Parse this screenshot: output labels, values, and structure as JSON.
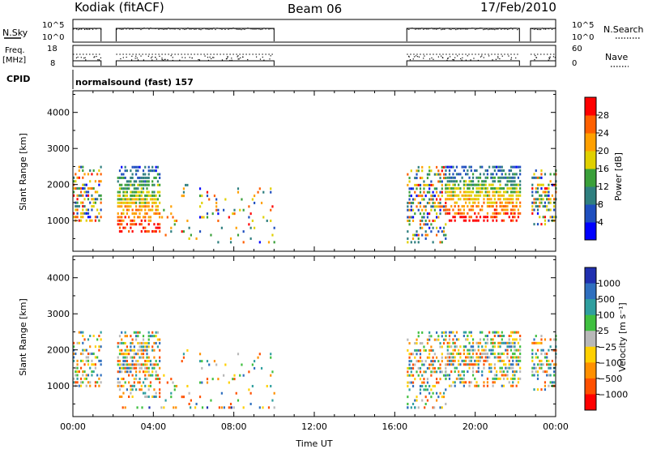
{
  "header": {
    "station": "Kodiak (fitACF)",
    "beam": "Beam 06",
    "date": "17/Feb/2010"
  },
  "strip_panels": {
    "nsky": {
      "label": "N.Sky",
      "ticks": [
        "10^5",
        "10^0"
      ]
    },
    "nsearch": {
      "label": "N.Search",
      "ticks": [
        "10^5",
        "10^0"
      ]
    },
    "freq": {
      "label_line1": "Freq.",
      "label_line2": "[MHz]",
      "ticks": [
        "18",
        "8"
      ]
    },
    "nave": {
      "label": "Nave",
      "ticks": [
        "60",
        "0"
      ]
    },
    "cpid": {
      "label": "CPID",
      "value": "normalsound (fast) 157"
    }
  },
  "chart_data": [
    {
      "type": "heatmap",
      "name": "power",
      "ylabel": "Slant Range [km]",
      "xlabel": "",
      "xlim": [
        0,
        24
      ],
      "ylim": [
        150,
        4600
      ],
      "yticks": [
        1000,
        2000,
        3000,
        4000
      ],
      "colorbar": {
        "label": "Power [dB]",
        "ticks": [
          "4",
          "8",
          "12",
          "16",
          "20",
          "24",
          "28"
        ],
        "range": [
          0,
          32
        ]
      },
      "data_intervals_ut": [
        [
          0.0,
          1.4
        ],
        [
          2.15,
          10.0
        ],
        [
          16.6,
          22.2
        ],
        [
          22.75,
          24.0
        ]
      ],
      "echo_bands": [
        {
          "x": [
            0.0,
            1.4
          ],
          "y": [
            1000,
            2500
          ],
          "level": "moderate"
        },
        {
          "x": [
            2.2,
            4.3
          ],
          "y": [
            700,
            2500
          ],
          "level": "strong"
        },
        {
          "x": [
            4.3,
            10.0
          ],
          "y": [
            400,
            2000
          ],
          "level": "sparse"
        },
        {
          "x": [
            16.6,
            18.5
          ],
          "y": [
            400,
            2500
          ],
          "level": "moderate"
        },
        {
          "x": [
            18.5,
            22.2
          ],
          "y": [
            1000,
            2500
          ],
          "level": "strong"
        },
        {
          "x": [
            22.8,
            24.0
          ],
          "y": [
            900,
            2400
          ],
          "level": "moderate"
        }
      ]
    },
    {
      "type": "heatmap",
      "name": "velocity",
      "ylabel": "Slant Range [km]",
      "xlabel": "Time UT",
      "xlim": [
        0,
        24
      ],
      "ylim": [
        150,
        4600
      ],
      "yticks": [
        1000,
        2000,
        3000,
        4000
      ],
      "xticks": [
        "00:00",
        "04:00",
        "08:00",
        "12:00",
        "16:00",
        "20:00",
        "00:00"
      ],
      "colorbar": {
        "label": "Velocity [m s⁻¹]",
        "ticks": [
          "1000",
          "500",
          "100",
          "25",
          "−25",
          "−100",
          "−500",
          "−1000"
        ]
      },
      "data_intervals_ut": [
        [
          0.0,
          1.4
        ],
        [
          2.15,
          10.0
        ],
        [
          16.6,
          22.2
        ],
        [
          22.75,
          24.0
        ]
      ]
    }
  ],
  "colors": {
    "power_scale": [
      "#0000ff",
      "#1f4fbf",
      "#2f7f7f",
      "#3aa03a",
      "#e0d000",
      "#ffa000",
      "#ff6000",
      "#ff0000"
    ],
    "velocity_scale": [
      "#2030b0",
      "#2f6fbf",
      "#2f9f9f",
      "#40c040",
      "#b8b8b8",
      "#ffd000",
      "#ff9000",
      "#ff5000",
      "#ff0000"
    ]
  }
}
